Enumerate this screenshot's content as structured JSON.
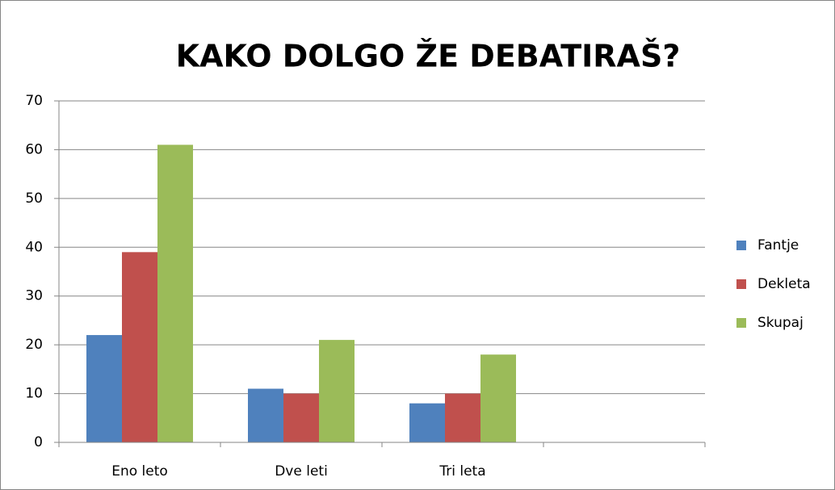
{
  "chart_data": {
    "type": "bar",
    "title": "KAKO DOLGO ŽE DEBATIRAŠ?",
    "categories": [
      "Eno leto",
      "Dve leti",
      "Tri leta",
      null
    ],
    "series": [
      {
        "name": "Fantje",
        "color": "#4f81bd",
        "values": [
          22,
          11,
          8,
          null
        ]
      },
      {
        "name": "Dekleta",
        "color": "#c0504d",
        "values": [
          39,
          10,
          10,
          null
        ]
      },
      {
        "name": "Skupaj",
        "color": "#9bbb59",
        "values": [
          61,
          21,
          18,
          null
        ]
      }
    ],
    "ylim": [
      0,
      70
    ],
    "yticks": [
      0,
      10,
      20,
      30,
      40,
      50,
      60,
      70
    ],
    "grid": true,
    "legend": "right"
  }
}
